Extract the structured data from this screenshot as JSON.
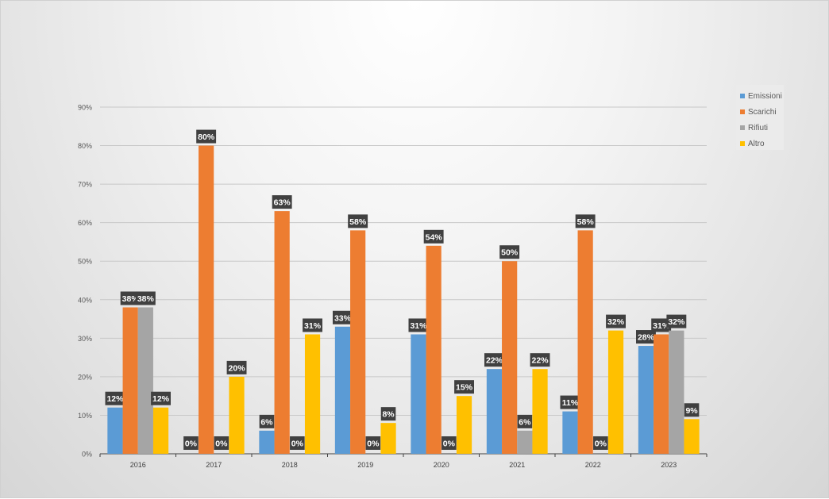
{
  "chart_data": {
    "type": "bar",
    "categories": [
      "2016",
      "2017",
      "2018",
      "2019",
      "2020",
      "2021",
      "2022",
      "2023"
    ],
    "series": [
      {
        "name": "Emissioni",
        "color": "#5B9BD5",
        "values": [
          12,
          0,
          6,
          33,
          31,
          22,
          11,
          28
        ]
      },
      {
        "name": "Scarichi",
        "color": "#ED7D31",
        "values": [
          38,
          80,
          63,
          58,
          54,
          50,
          58,
          31
        ]
      },
      {
        "name": "Rifiuti",
        "color": "#A5A5A5",
        "values": [
          38,
          0,
          0,
          0,
          0,
          6,
          0,
          32
        ]
      },
      {
        "name": "Altro",
        "color": "#FFC000",
        "values": [
          12,
          20,
          31,
          8,
          15,
          22,
          32,
          9
        ]
      }
    ],
    "ylim": [
      0,
      90
    ],
    "yticks": [
      "0%",
      "10%",
      "20%",
      "30%",
      "40%",
      "50%",
      "60%",
      "70%",
      "80%",
      "90%"
    ],
    "value_suffix": "%",
    "grid": true,
    "legend_position": "right"
  }
}
